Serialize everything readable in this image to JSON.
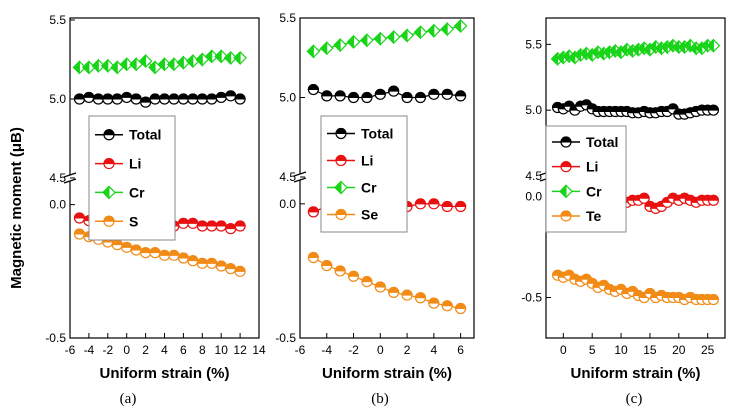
{
  "y_axis_title": "Magnetic moment (μB)",
  "x_axis_title": "Uniform strain (%)",
  "colors": {
    "Total": "#000000",
    "Li": "#e81010",
    "Cr": "#19d419",
    "S": "#f28a16",
    "Se": "#f28a16",
    "Te": "#f28a16"
  },
  "chart_data": [
    {
      "type": "line",
      "panel": "(a)",
      "xlabel": "Uniform strain (%)",
      "ylabel": "Magnetic moment (μB)",
      "xlim": [
        -6,
        14
      ],
      "xticks": [
        -6,
        -4,
        -2,
        0,
        2,
        4,
        6,
        8,
        10,
        12,
        14
      ],
      "upper": {
        "ylim": [
          4.5,
          5.5
        ],
        "ticks": [
          4.5,
          5.0,
          5.5
        ],
        "tick_labels": [
          "4.5",
          "5.0",
          "5.5"
        ]
      },
      "lower": {
        "ylim": [
          -0.5,
          0.1
        ],
        "ticks": [
          -0.5,
          0.0
        ],
        "tick_labels": [
          "-0.5",
          "0.0"
        ]
      },
      "x": [
        -5,
        -4,
        -3,
        -2,
        -1,
        0,
        1,
        2,
        3,
        4,
        5,
        6,
        7,
        8,
        9,
        10,
        11,
        12
      ],
      "series": [
        {
          "name": "Total",
          "marker": "half-circle",
          "values": [
            5.0,
            5.01,
            5.0,
            5.0,
            5.0,
            5.01,
            5.0,
            4.98,
            5.0,
            5.0,
            5.0,
            5.0,
            5.0,
            5.0,
            5.0,
            5.01,
            5.02,
            5.0
          ]
        },
        {
          "name": "Li",
          "marker": "half-circle",
          "values": [
            -0.05,
            -0.06,
            -0.06,
            -0.06,
            -0.07,
            -0.04,
            -0.09,
            -0.08,
            -0.08,
            -0.08,
            -0.08,
            -0.07,
            -0.07,
            -0.08,
            -0.08,
            -0.08,
            -0.09,
            -0.08
          ]
        },
        {
          "name": "Cr",
          "marker": "half-diamond",
          "values": [
            5.2,
            5.2,
            5.21,
            5.21,
            5.2,
            5.22,
            5.22,
            5.24,
            5.2,
            5.22,
            5.22,
            5.23,
            5.24,
            5.25,
            5.27,
            5.27,
            5.26,
            5.26
          ]
        },
        {
          "name": "S",
          "marker": "half-circle",
          "values": [
            -0.11,
            -0.12,
            -0.13,
            -0.14,
            -0.15,
            -0.16,
            -0.17,
            -0.18,
            -0.18,
            -0.19,
            -0.19,
            -0.2,
            -0.21,
            -0.22,
            -0.22,
            -0.23,
            -0.24,
            -0.25
          ]
        }
      ]
    },
    {
      "type": "line",
      "panel": "(b)",
      "xlabel": "Uniform strain (%)",
      "ylabel": "",
      "xlim": [
        -6,
        7
      ],
      "xticks": [
        -6,
        -4,
        -2,
        0,
        2,
        4,
        6
      ],
      "upper": {
        "ylim": [
          4.5,
          5.5
        ],
        "ticks": [
          4.5,
          5.0,
          5.5
        ],
        "tick_labels": [
          "4.5",
          "5.0",
          "5.5"
        ]
      },
      "lower": {
        "ylim": [
          -0.5,
          0.1
        ],
        "ticks": [
          -0.5,
          0.0
        ],
        "tick_labels": [
          "-0.5",
          "0.0"
        ]
      },
      "x": [
        -5,
        -4,
        -3,
        -2,
        -1,
        0,
        1,
        2,
        3,
        4,
        5,
        6
      ],
      "series": [
        {
          "name": "Total",
          "marker": "half-circle",
          "values": [
            5.05,
            5.01,
            5.01,
            5.0,
            5.0,
            5.02,
            5.04,
            5.0,
            5.0,
            5.02,
            5.02,
            5.01
          ]
        },
        {
          "name": "Li",
          "marker": "half-circle",
          "values": [
            -0.03,
            -0.01,
            -0.02,
            -0.02,
            -0.02,
            -0.01,
            -0.01,
            -0.01,
            0.0,
            0.0,
            -0.01,
            -0.01
          ]
        },
        {
          "name": "Cr",
          "marker": "half-diamond",
          "values": [
            5.29,
            5.31,
            5.33,
            5.35,
            5.36,
            5.37,
            5.38,
            5.39,
            5.41,
            5.42,
            5.43,
            5.45
          ]
        },
        {
          "name": "Se",
          "marker": "half-circle",
          "values": [
            -0.2,
            -0.23,
            -0.25,
            -0.27,
            -0.29,
            -0.31,
            -0.33,
            -0.34,
            -0.35,
            -0.37,
            -0.38,
            -0.39
          ]
        }
      ]
    },
    {
      "type": "line",
      "panel": "(c)",
      "xlabel": "Uniform strain (%)",
      "ylabel": "",
      "xlim": [
        -3,
        28
      ],
      "xticks": [
        0,
        5,
        10,
        15,
        20,
        25
      ],
      "upper": {
        "ylim": [
          4.5,
          5.7
        ],
        "ticks": [
          4.5,
          5.0,
          5.5
        ],
        "tick_labels": [
          "4.5",
          "5.0",
          "5.5"
        ]
      },
      "lower": {
        "ylim": [
          -0.7,
          0.1
        ],
        "ticks": [
          -0.5,
          0.0
        ],
        "tick_labels": [
          "-0.5",
          "0.0"
        ]
      },
      "x": [
        -1,
        0,
        1,
        2,
        3,
        4,
        5,
        6,
        7,
        8,
        9,
        10,
        11,
        12,
        13,
        14,
        15,
        16,
        17,
        18,
        19,
        20,
        21,
        22,
        23,
        24,
        25,
        26
      ],
      "series": [
        {
          "name": "Total",
          "marker": "half-circle",
          "values": [
            5.02,
            5.01,
            5.03,
            5.0,
            5.03,
            5.04,
            5.01,
            4.99,
            4.99,
            4.99,
            4.99,
            4.99,
            4.99,
            4.98,
            4.98,
            4.99,
            4.98,
            4.98,
            4.99,
            4.99,
            5.01,
            4.97,
            4.97,
            4.98,
            4.99,
            5.0,
            5.0,
            5.0
          ]
        },
        {
          "name": "Li",
          "marker": "half-circle",
          "values": [
            -0.02,
            -0.03,
            -0.02,
            -0.03,
            -0.02,
            -0.03,
            -0.02,
            -0.03,
            -0.03,
            -0.02,
            -0.03,
            -0.02,
            -0.03,
            -0.02,
            -0.02,
            -0.01,
            -0.05,
            -0.06,
            -0.05,
            -0.03,
            -0.01,
            -0.02,
            -0.01,
            -0.02,
            -0.03,
            -0.02,
            -0.02,
            -0.02
          ]
        },
        {
          "name": "Cr",
          "marker": "half-diamond",
          "values": [
            5.39,
            5.4,
            5.41,
            5.4,
            5.42,
            5.43,
            5.42,
            5.44,
            5.43,
            5.44,
            5.45,
            5.44,
            5.46,
            5.45,
            5.46,
            5.47,
            5.46,
            5.48,
            5.47,
            5.48,
            5.49,
            5.48,
            5.48,
            5.49,
            5.47,
            5.47,
            5.49,
            5.49
          ]
        },
        {
          "name": "Te",
          "marker": "half-circle",
          "values": [
            -0.39,
            -0.4,
            -0.39,
            -0.41,
            -0.42,
            -0.41,
            -0.43,
            -0.45,
            -0.44,
            -0.46,
            -0.47,
            -0.46,
            -0.48,
            -0.47,
            -0.49,
            -0.5,
            -0.48,
            -0.5,
            -0.49,
            -0.5,
            -0.5,
            -0.5,
            -0.51,
            -0.5,
            -0.51,
            -0.51,
            -0.51,
            -0.51
          ]
        }
      ]
    }
  ]
}
